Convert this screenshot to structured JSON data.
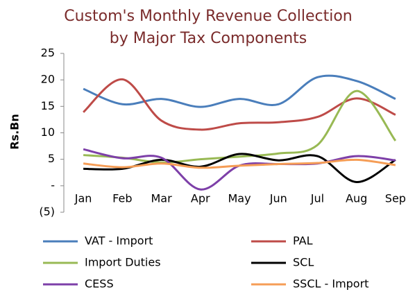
{
  "chart_data": {
    "type": "line",
    "smooth": true,
    "title": [
      "Custom's Monthly Revenue Collection",
      "by Major Tax Components"
    ],
    "y_label": "Rs.Bn",
    "categories": [
      "Jan",
      "Feb",
      "Mar",
      "Apr",
      "May",
      "Jun",
      "Jul",
      "Aug",
      "Sep"
    ],
    "ylim": [
      -5,
      25
    ],
    "yticks": [
      {
        "value": -5,
        "label": "(5)"
      },
      {
        "value": 0,
        "label": "-"
      },
      5,
      10,
      15,
      20,
      25
    ],
    "legend": "bottom",
    "series": [
      {
        "name": "VAT - Import",
        "color": "#4a7ebb",
        "values": [
          18.3,
          15.4,
          16.4,
          14.9,
          16.4,
          15.4,
          20.5,
          19.8,
          16.4
        ]
      },
      {
        "name": "PAL",
        "color": "#be4b48",
        "values": [
          13.9,
          20.1,
          12.3,
          10.6,
          11.8,
          12.0,
          13.0,
          16.5,
          13.4
        ]
      },
      {
        "name": "Import Duties",
        "color": "#98b954",
        "values": [
          5.8,
          5.3,
          4.4,
          5.0,
          5.5,
          6.1,
          7.7,
          17.9,
          8.5
        ]
      },
      {
        "name": "SCL",
        "color": "#000000",
        "values": [
          3.2,
          3.2,
          4.9,
          3.6,
          6.0,
          4.8,
          5.6,
          0.7,
          4.9
        ]
      },
      {
        "name": "CESS",
        "color": "#7d3fa8",
        "values": [
          6.9,
          5.2,
          5.3,
          -0.7,
          3.8,
          4.1,
          4.2,
          5.6,
          4.8
        ]
      },
      {
        "name": "SSCL - Import",
        "color": "#f59d56",
        "values": [
          4.2,
          3.5,
          4.2,
          3.4,
          3.8,
          4.1,
          4.3,
          4.9,
          3.9
        ]
      }
    ]
  }
}
